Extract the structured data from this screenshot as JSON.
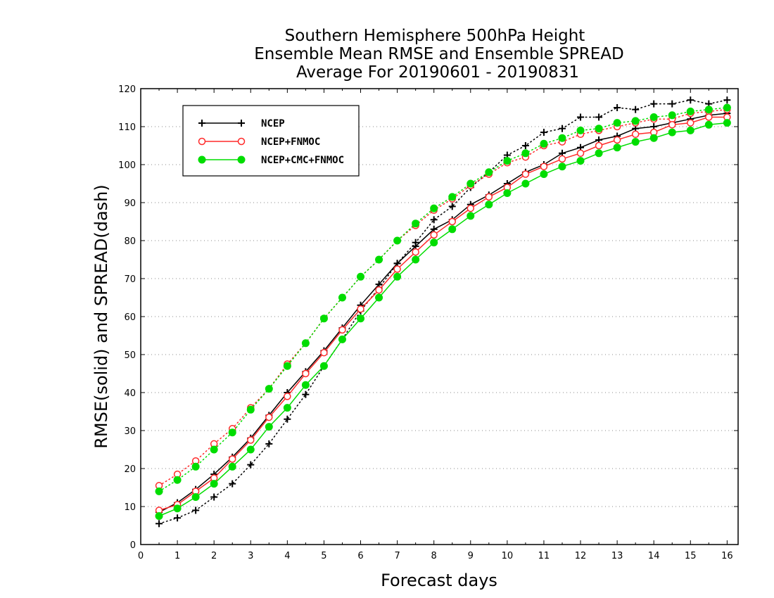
{
  "chart_data": {
    "type": "line",
    "title": [
      "Southern Hemisphere 500hPa Height",
      "Ensemble Mean RMSE and Ensemble SPREAD",
      "Average For 20190601 - 20190831"
    ],
    "xlabel": "Forecast days",
    "ylabel": "RMSE(solid) and SPREAD(dash)",
    "xlim": [
      0,
      16.3
    ],
    "ylim": [
      0,
      120
    ],
    "xticks": [
      0,
      1,
      2,
      3,
      4,
      5,
      6,
      7,
      8,
      9,
      10,
      11,
      12,
      13,
      14,
      15,
      16
    ],
    "yticks": [
      0,
      10,
      20,
      30,
      40,
      50,
      60,
      70,
      80,
      90,
      100,
      110,
      120
    ],
    "grid": true,
    "legend_position": "top-left",
    "x": [
      0.5,
      1,
      1.5,
      2,
      2.5,
      3,
      3.5,
      4,
      4.5,
      5,
      5.5,
      6,
      6.5,
      7,
      7.5,
      8,
      8.5,
      9,
      9.5,
      10,
      10.5,
      11,
      11.5,
      12,
      12.5,
      13,
      13.5,
      14,
      14.5,
      15,
      15.5,
      16
    ],
    "series": [
      {
        "name": "NCEP",
        "color": "#000000",
        "marker": "plus",
        "rmse": [
          8.5,
          11.0,
          14.5,
          18.5,
          23.0,
          28.0,
          34.0,
          40.0,
          45.5,
          51.0,
          57.0,
          63.0,
          68.5,
          74.0,
          78.5,
          83.0,
          85.5,
          89.5,
          92.0,
          95.0,
          98.0,
          100.0,
          103.0,
          104.5,
          106.5,
          107.5,
          109.5,
          110.0,
          111.0,
          112.0,
          113.0,
          113.5
        ],
        "spread": [
          5.5,
          7.0,
          9.0,
          12.5,
          16.0,
          21.0,
          26.5,
          33.0,
          39.5,
          47.0,
          54.0,
          61.5,
          67.5,
          74.0,
          79.5,
          85.5,
          89.0,
          94.0,
          98.0,
          102.5,
          105.0,
          108.5,
          109.5,
          112.5,
          112.5,
          115.0,
          114.5,
          116.0,
          116.0,
          117.0,
          116.0,
          117.0
        ]
      },
      {
        "name": "NCEP+FNMOC",
        "color": "#ff2a2a",
        "marker": "open-circle",
        "rmse": [
          9.0,
          10.5,
          14.0,
          17.5,
          22.5,
          27.5,
          33.5,
          39.0,
          45.0,
          50.5,
          56.5,
          62.0,
          67.0,
          72.5,
          77.0,
          81.5,
          85.0,
          88.5,
          91.5,
          94.0,
          97.5,
          99.5,
          101.5,
          103.0,
          105.0,
          106.5,
          108.0,
          108.5,
          110.5,
          111.0,
          112.5,
          112.5
        ],
        "spread": [
          15.5,
          18.5,
          22.0,
          26.5,
          30.5,
          36.0,
          41.0,
          47.5,
          53.0,
          59.5,
          65.0,
          70.5,
          75.0,
          80.0,
          84.0,
          88.0,
          91.0,
          94.5,
          97.5,
          100.5,
          102.0,
          105.0,
          106.0,
          108.0,
          109.0,
          110.0,
          111.0,
          112.0,
          112.0,
          113.5,
          114.0,
          114.5
        ]
      },
      {
        "name": "NCEP+CMC+FNMOC",
        "color": "#00dd00",
        "marker": "filled-circle",
        "rmse": [
          7.5,
          9.5,
          12.5,
          16.0,
          20.5,
          25.0,
          31.0,
          36.0,
          42.0,
          47.0,
          54.0,
          59.5,
          65.0,
          70.5,
          75.0,
          79.5,
          83.0,
          86.5,
          89.5,
          92.5,
          95.0,
          97.5,
          99.5,
          101.0,
          103.0,
          104.5,
          106.0,
          107.0,
          108.5,
          109.0,
          110.5,
          111.0
        ],
        "spread": [
          14.0,
          17.0,
          20.5,
          25.0,
          29.5,
          35.5,
          41.0,
          47.0,
          53.0,
          59.5,
          65.0,
          70.5,
          75.0,
          80.0,
          84.5,
          88.5,
          91.5,
          95.0,
          98.0,
          101.0,
          103.0,
          105.5,
          107.0,
          109.0,
          109.5,
          111.0,
          111.5,
          112.5,
          113.0,
          114.0,
          114.5,
          115.0
        ]
      }
    ]
  }
}
